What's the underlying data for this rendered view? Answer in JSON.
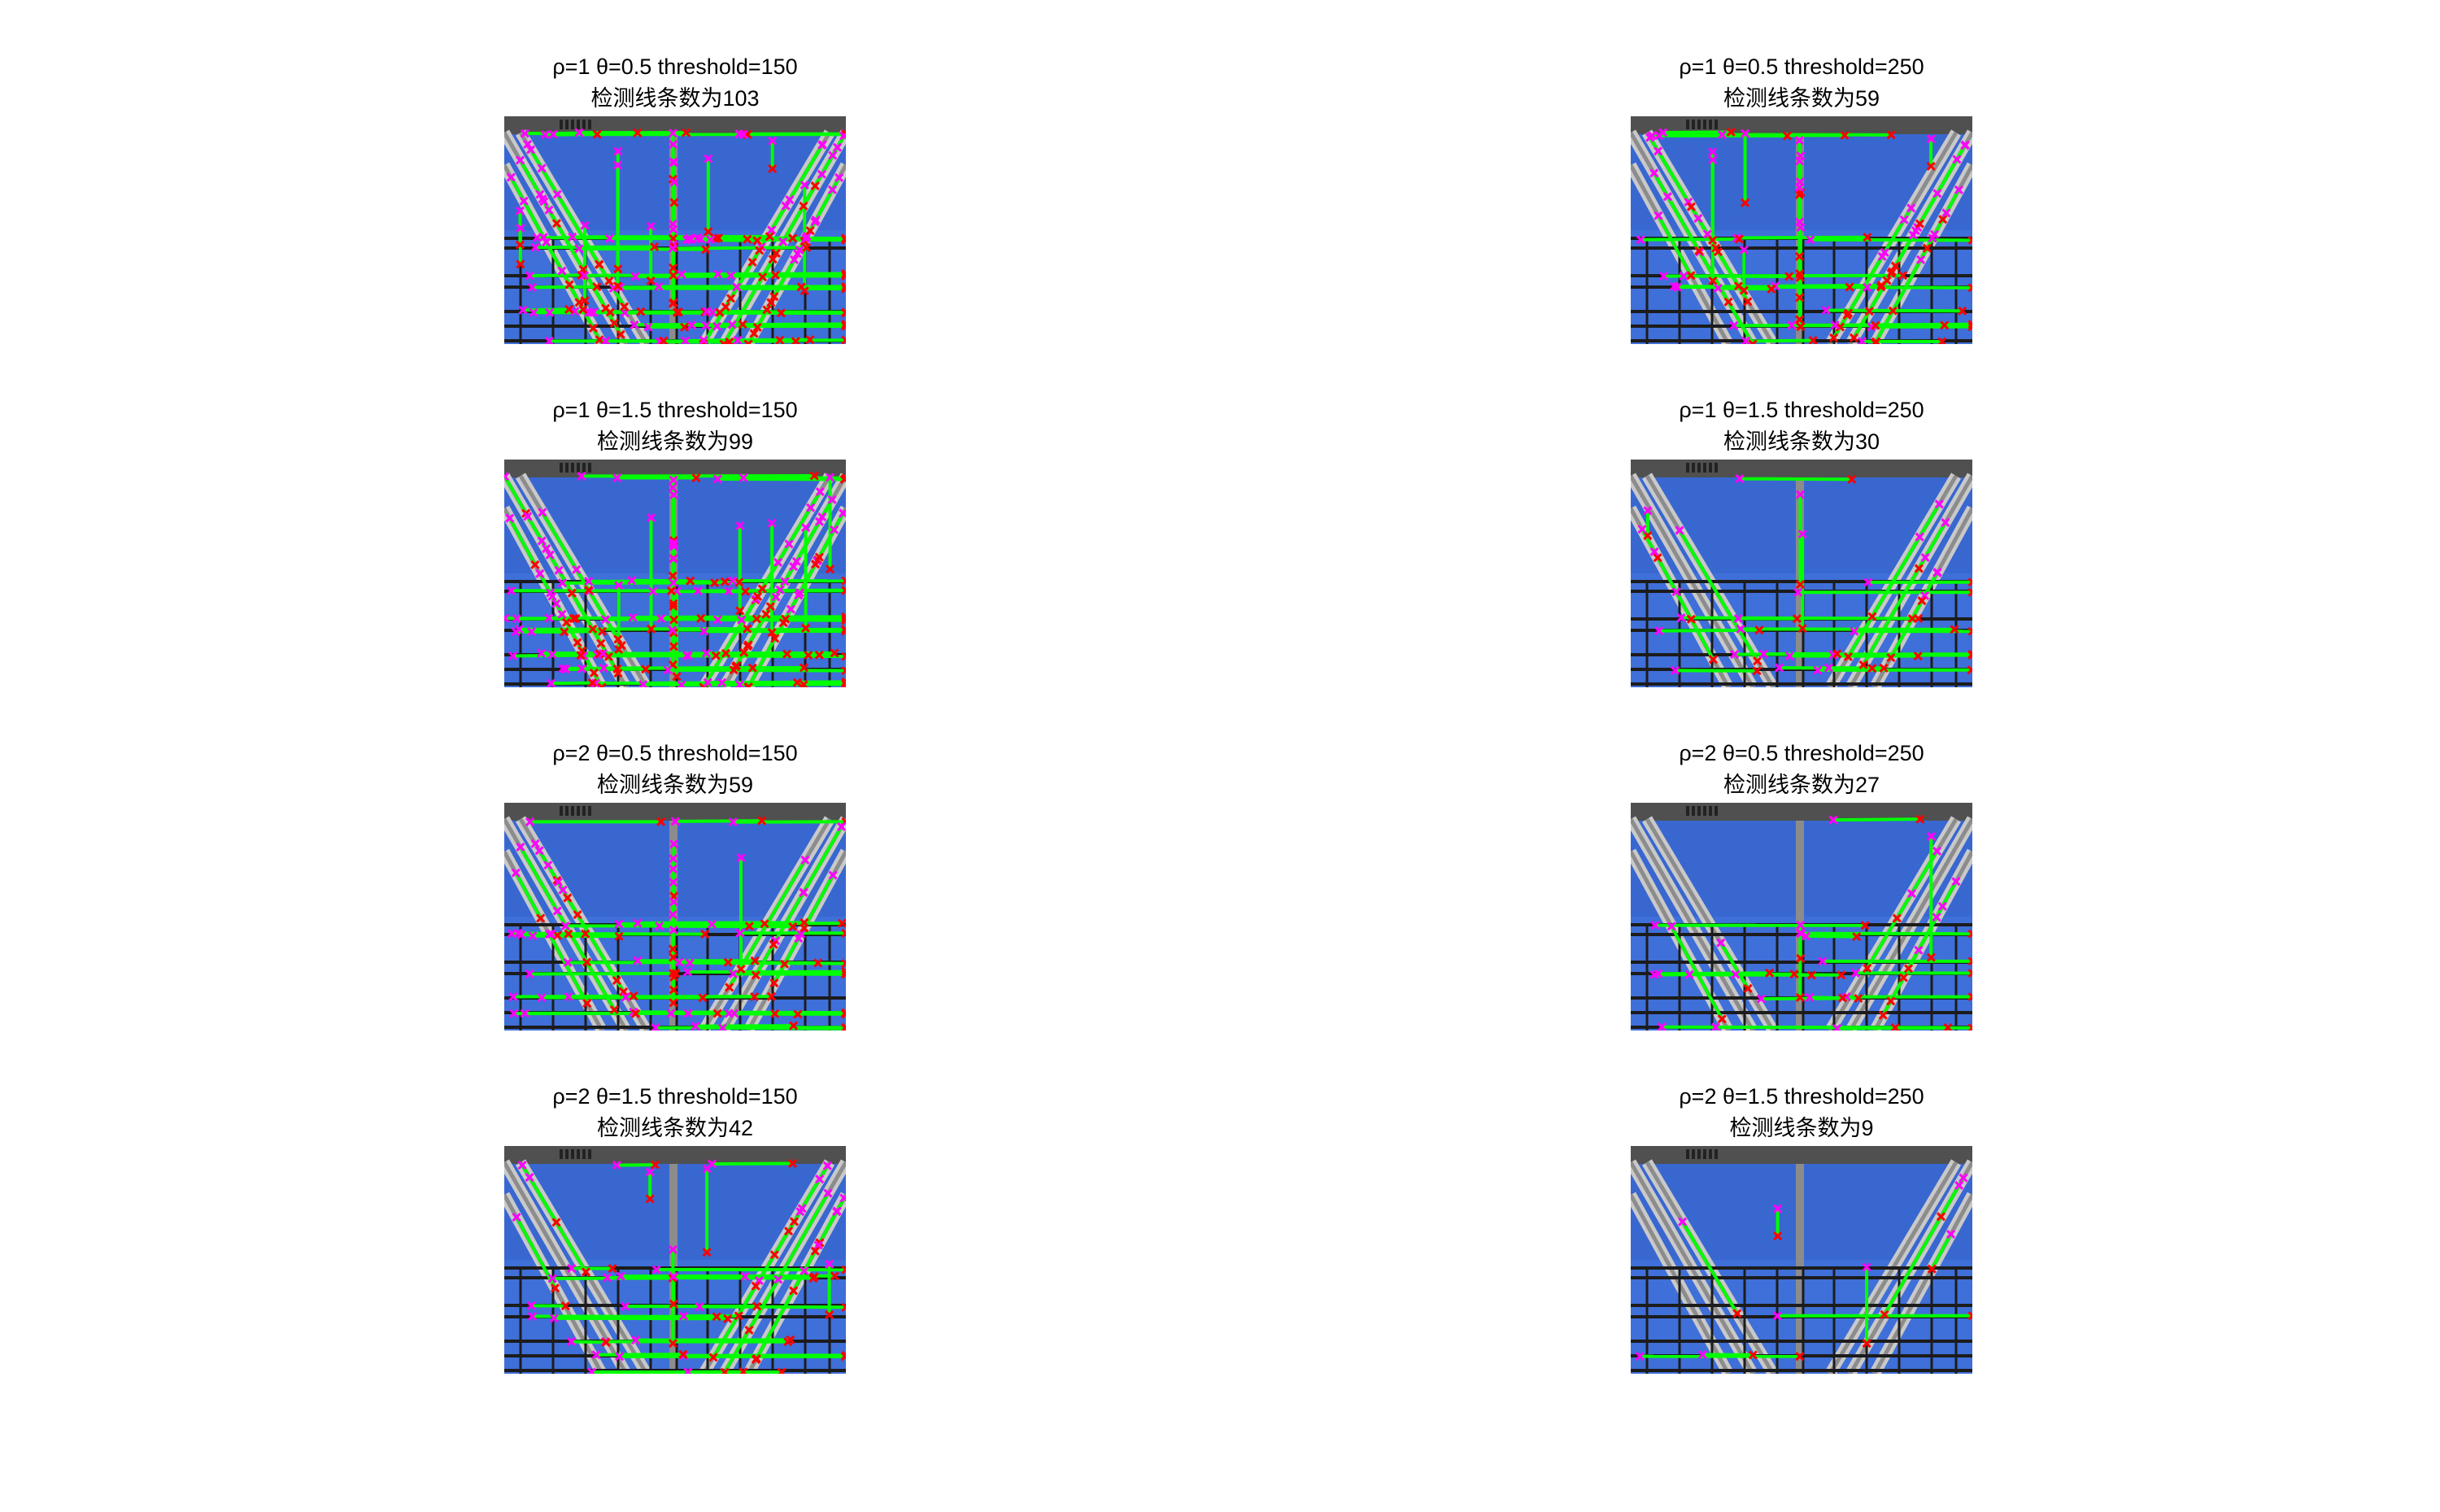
{
  "figure": {
    "background": "#ffffff",
    "subplots": [
      {
        "id": "p1",
        "title": "ρ=1 θ=0.5 threshold=150",
        "caption": "检测线条数为103",
        "line_count": 103
      },
      {
        "id": "p2",
        "title": "ρ=1 θ=0.5 threshold=250",
        "caption": "检测线条数为59",
        "line_count": 59
      },
      {
        "id": "p3",
        "title": "ρ=1 θ=1.5 threshold=150",
        "caption": "检测线条数为99",
        "line_count": 99
      },
      {
        "id": "p4",
        "title": "ρ=1 θ=1.5 threshold=250",
        "caption": "检测线条数为30",
        "line_count": 30
      },
      {
        "id": "p5",
        "title": "ρ=2 θ=0.5 threshold=150",
        "caption": "检测线条数为59",
        "line_count": 59
      },
      {
        "id": "p6",
        "title": "ρ=2 θ=0.5 threshold=250",
        "caption": "检测线条数为27",
        "line_count": 27
      },
      {
        "id": "p7",
        "title": "ρ=2 θ=1.5 threshold=150",
        "caption": "检测线条数为42",
        "line_count": 42
      },
      {
        "id": "p8",
        "title": "ρ=2 θ=1.5 threshold=250",
        "caption": "检测线条数为9",
        "line_count": 9
      }
    ]
  },
  "colors": {
    "sky": "#3f6fd8",
    "sky_dark": "#2d58c2",
    "girder": "#8c8c8c",
    "girder_light": "#c9c9c9",
    "grid_bar": "#1c1c1c",
    "roof": "#505050",
    "detected_line": "#00ff00",
    "endpoint_start": "#ff00ff",
    "endpoint_end": "#ff0000"
  }
}
